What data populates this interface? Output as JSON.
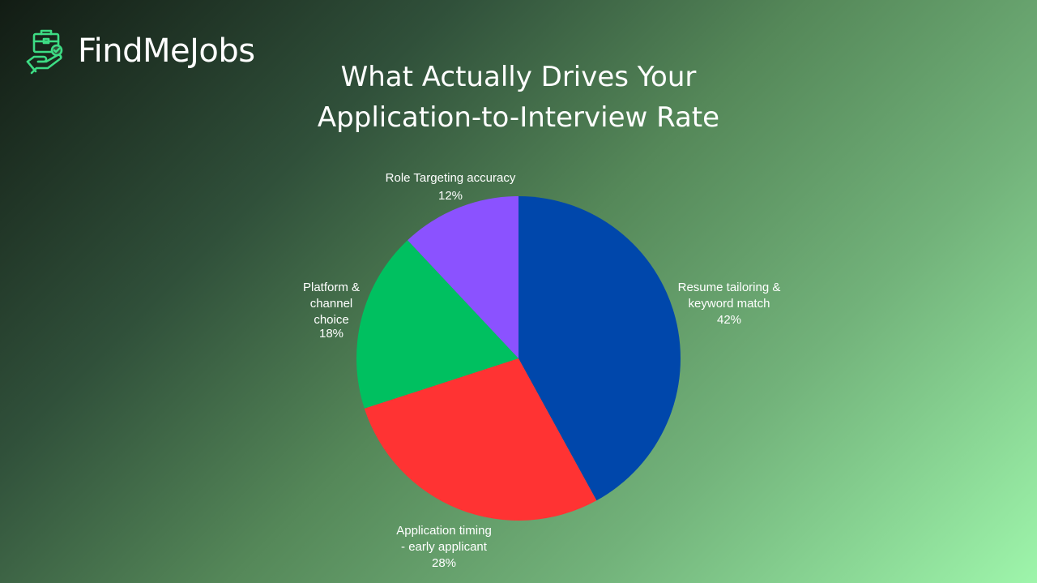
{
  "brand": {
    "name": "FindMeJobs",
    "icon": "briefcase-hand-icon",
    "icon_color": "#3ddc84"
  },
  "chart_data": {
    "type": "pie",
    "title": "What Actually Drives Your Application-to-Interview Rate",
    "title_lines": [
      "What Actually Drives Your",
      "Application-to-Interview Rate"
    ],
    "slices": [
      {
        "label_lines": [
          "Resume tailoring &",
          "keyword match"
        ],
        "label": "Resume tailoring & keyword match",
        "value": 42,
        "pct_text": "42%",
        "color": "#0047ab"
      },
      {
        "label_lines": [
          "Application timing",
          "- early applicant"
        ],
        "label": "Application timing - early applicant",
        "value": 28,
        "pct_text": "28%",
        "color": "#ff3333"
      },
      {
        "label_lines": [
          "Platform &",
          "channel",
          "choice"
        ],
        "label": "Platform & channel choice",
        "value": 18,
        "pct_text": "18%",
        "color": "#00c060"
      },
      {
        "label_lines": [
          "Role Targeting accuracy"
        ],
        "label": "Role Targeting accuracy",
        "value": 12,
        "pct_text": "12%",
        "color": "#8b52ff"
      }
    ],
    "start_angle": "12 o'clock",
    "direction": "clockwise",
    "legend": "none"
  }
}
